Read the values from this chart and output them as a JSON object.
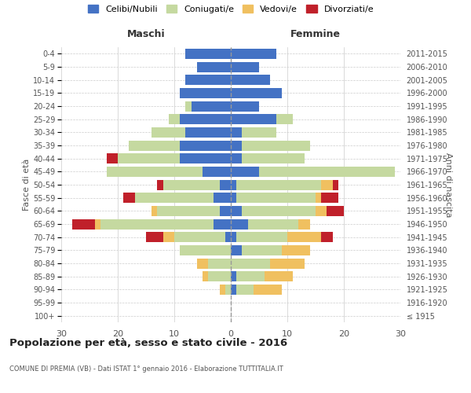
{
  "age_groups": [
    "100+",
    "95-99",
    "90-94",
    "85-89",
    "80-84",
    "75-79",
    "70-74",
    "65-69",
    "60-64",
    "55-59",
    "50-54",
    "45-49",
    "40-44",
    "35-39",
    "30-34",
    "25-29",
    "20-24",
    "15-19",
    "10-14",
    "5-9",
    "0-4"
  ],
  "birth_years": [
    "≤ 1915",
    "1916-1920",
    "1921-1925",
    "1926-1930",
    "1931-1935",
    "1936-1940",
    "1941-1945",
    "1946-1950",
    "1951-1955",
    "1956-1960",
    "1961-1965",
    "1966-1970",
    "1971-1975",
    "1976-1980",
    "1981-1985",
    "1986-1990",
    "1991-1995",
    "1996-2000",
    "2001-2005",
    "2006-2010",
    "2011-2015"
  ],
  "male": {
    "celibi": [
      0,
      0,
      0,
      0,
      0,
      0,
      1,
      3,
      2,
      3,
      2,
      5,
      9,
      9,
      8,
      9,
      7,
      9,
      8,
      6,
      8
    ],
    "coniugati": [
      0,
      0,
      1,
      4,
      4,
      9,
      9,
      20,
      11,
      14,
      10,
      17,
      11,
      9,
      6,
      2,
      1,
      0,
      0,
      0,
      0
    ],
    "vedovi": [
      0,
      0,
      1,
      1,
      2,
      0,
      2,
      1,
      1,
      0,
      0,
      0,
      0,
      0,
      0,
      0,
      0,
      0,
      0,
      0,
      0
    ],
    "divorziati": [
      0,
      0,
      0,
      0,
      0,
      0,
      3,
      4,
      0,
      2,
      1,
      0,
      2,
      0,
      0,
      0,
      0,
      0,
      0,
      0,
      0
    ]
  },
  "female": {
    "nubili": [
      0,
      0,
      1,
      1,
      0,
      2,
      1,
      3,
      2,
      1,
      1,
      5,
      2,
      2,
      2,
      8,
      5,
      9,
      7,
      5,
      8
    ],
    "coniugate": [
      0,
      0,
      3,
      5,
      7,
      7,
      9,
      9,
      13,
      14,
      15,
      24,
      11,
      12,
      6,
      3,
      0,
      0,
      0,
      0,
      0
    ],
    "vedove": [
      0,
      0,
      5,
      5,
      6,
      5,
      6,
      2,
      2,
      1,
      2,
      0,
      0,
      0,
      0,
      0,
      0,
      0,
      0,
      0,
      0
    ],
    "divorziate": [
      0,
      0,
      0,
      0,
      0,
      0,
      2,
      0,
      3,
      3,
      1,
      0,
      0,
      0,
      0,
      0,
      0,
      0,
      0,
      0,
      0
    ]
  },
  "colors": {
    "celibi": "#4472c4",
    "coniugati": "#c5d9a0",
    "vedovi": "#f0c060",
    "divorziati": "#c0202a"
  },
  "title": "Popolazione per età, sesso e stato civile - 2016",
  "subtitle": "COMUNE DI PREMIA (VB) - Dati ISTAT 1° gennaio 2016 - Elaborazione TUTTITALIA.IT",
  "xlabel_left": "Maschi",
  "xlabel_right": "Femmine",
  "ylabel_left": "Fasce di età",
  "ylabel_right": "Anni di nascita",
  "xlim": 30,
  "legend_labels": [
    "Celibi/Nubili",
    "Coniugati/e",
    "Vedovi/e",
    "Divorziati/e"
  ],
  "background_color": "#ffffff",
  "grid_color": "#cccccc"
}
